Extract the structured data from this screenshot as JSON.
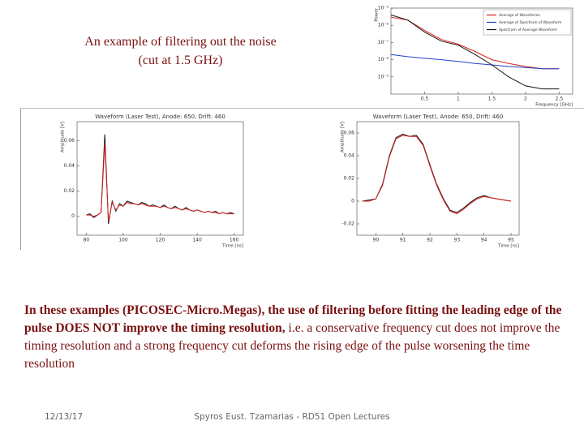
{
  "title_lines": [
    "An example of filtering out the noise",
    "(cut at 1.5 GHz)"
  ],
  "chart_data": [
    {
      "type": "line",
      "log_y": true,
      "ylabel": "Power",
      "xlabel": "Frequency [GHz]",
      "x": [
        0,
        0.25,
        0.5,
        0.75,
        1,
        1.25,
        1.5,
        1.75,
        2,
        2.25,
        2.5
      ],
      "xlim": [
        0,
        2.7
      ],
      "xticks": [
        0.5,
        1,
        1.5,
        2,
        2.5
      ],
      "ylim": [
        1e-10,
        1e-05
      ],
      "yticks": [
        {
          "value": 1e-09,
          "label": "10⁻⁹"
        },
        {
          "value": 1e-08,
          "label": "10⁻⁸"
        },
        {
          "value": 1e-07,
          "label": "10⁻⁷"
        },
        {
          "value": 1e-06,
          "label": "10⁻⁶"
        },
        {
          "value": 1e-05,
          "label": "10⁻⁵"
        }
      ],
      "legend": "upper right",
      "series": [
        {
          "name": "Average of Waveforms",
          "color": "#d62020",
          "values": [
            3e-06,
            2e-06,
            5e-07,
            1.5e-07,
            8e-08,
            3e-08,
            1e-08,
            6e-09,
            4e-09,
            3e-09,
            3e-09
          ]
        },
        {
          "name": "Average of Spectrum of Waveform",
          "color": "#2040c8",
          "values": [
            2e-08,
            1.5e-08,
            1.2e-08,
            1e-08,
            8e-09,
            6e-09,
            5e-09,
            4e-09,
            3.5e-09,
            3e-09,
            3e-09
          ]
        },
        {
          "name": "Spectrum of Average Waveform",
          "color": "#111111",
          "values": [
            4e-06,
            2e-06,
            4e-07,
            1.2e-07,
            7e-08,
            2e-08,
            5e-09,
            1e-09,
            3e-10,
            2e-10,
            2e-10
          ]
        }
      ]
    },
    {
      "type": "line",
      "title": "Waveform (Laser Test), Anode: 650, Drift: 460",
      "ylabel": "Amplitude [V]",
      "xlabel": "Time [ns]",
      "x": [
        80,
        82,
        84,
        86,
        88,
        90,
        92,
        94,
        96,
        98,
        100,
        102,
        104,
        106,
        108,
        110,
        112,
        114,
        116,
        118,
        120,
        122,
        124,
        126,
        128,
        130,
        132,
        134,
        136,
        138,
        140,
        142,
        144,
        146,
        148,
        150,
        152,
        154,
        156,
        158,
        160
      ],
      "xlim": [
        75,
        165
      ],
      "xticks": [
        80,
        100,
        120,
        140,
        160
      ],
      "ylim": [
        -0.015,
        0.075
      ],
      "yticks": [
        0,
        0.02,
        0.04,
        0.06
      ],
      "series": [
        {
          "color": "#111111",
          "values": [
            0.001,
            0.002,
            -0.001,
            0.001,
            0.003,
            0.065,
            -0.006,
            0.012,
            0.004,
            0.01,
            0.008,
            0.012,
            0.011,
            0.01,
            0.009,
            0.011,
            0.01,
            0.008,
            0.009,
            0.008,
            0.007,
            0.009,
            0.007,
            0.006,
            0.008,
            0.006,
            0.005,
            0.007,
            0.005,
            0.004,
            0.005,
            0.004,
            0.003,
            0.004,
            0.003,
            0.004,
            0.002,
            0.003,
            0.002,
            0.003,
            0.002
          ]
        },
        {
          "color": "#d62020",
          "values": [
            0.001,
            0.001,
            0.0,
            0.001,
            0.003,
            0.058,
            -0.004,
            0.011,
            0.005,
            0.009,
            0.008,
            0.011,
            0.01,
            0.01,
            0.009,
            0.01,
            0.009,
            0.008,
            0.008,
            0.008,
            0.007,
            0.008,
            0.007,
            0.006,
            0.007,
            0.006,
            0.005,
            0.006,
            0.005,
            0.004,
            0.005,
            0.004,
            0.003,
            0.004,
            0.003,
            0.003,
            0.002,
            0.003,
            0.002,
            0.002,
            0.002
          ]
        }
      ]
    },
    {
      "type": "line",
      "title": "Waveform (Laser Test), Anode: 650, Drift: 460",
      "ylabel": "Amplitude [V]",
      "xlabel": "Time [ns]",
      "x": [
        89.5,
        89.75,
        90,
        90.25,
        90.5,
        90.75,
        91,
        91.25,
        91.5,
        91.75,
        92,
        92.25,
        92.5,
        92.75,
        93,
        93.25,
        93.5,
        93.75,
        94,
        94.25,
        94.5,
        94.75,
        95
      ],
      "xlim": [
        89.3,
        95.3
      ],
      "xticks": [
        90,
        91,
        92,
        93,
        94,
        95
      ],
      "ylim": [
        -0.03,
        0.07
      ],
      "yticks": [
        -0.02,
        0,
        0.02,
        0.04,
        0.06
      ],
      "series": [
        {
          "color": "#111111",
          "values": [
            0.0,
            0.001,
            0.002,
            0.015,
            0.04,
            0.056,
            0.059,
            0.057,
            0.058,
            0.05,
            0.032,
            0.015,
            0.002,
            -0.008,
            -0.01,
            -0.006,
            -0.001,
            0.003,
            0.005,
            0.003,
            0.002,
            0.001,
            0.0
          ]
        },
        {
          "color": "#d62020",
          "values": [
            0.0,
            0.0,
            0.002,
            0.014,
            0.039,
            0.055,
            0.058,
            0.057,
            0.057,
            0.049,
            0.031,
            0.014,
            0.001,
            -0.009,
            -0.011,
            -0.007,
            -0.002,
            0.002,
            0.004,
            0.003,
            0.002,
            0.001,
            0.0
          ]
        }
      ]
    }
  ],
  "body": {
    "bold": "In these examples (PICOSEC-Micro.Megas), the use of  filtering before fitting the leading edge of the pulse DOES NOT improve the timing resolution,",
    "normal": " i.e. a conservative frequency cut does not improve the timing resolution and a strong frequency cut deforms the rising edge of the pulse worsening the time resolution"
  },
  "footer": {
    "date": "12/13/17",
    "author": "Spyros Eust. Tzamarias - RD51 Open Lectures"
  }
}
